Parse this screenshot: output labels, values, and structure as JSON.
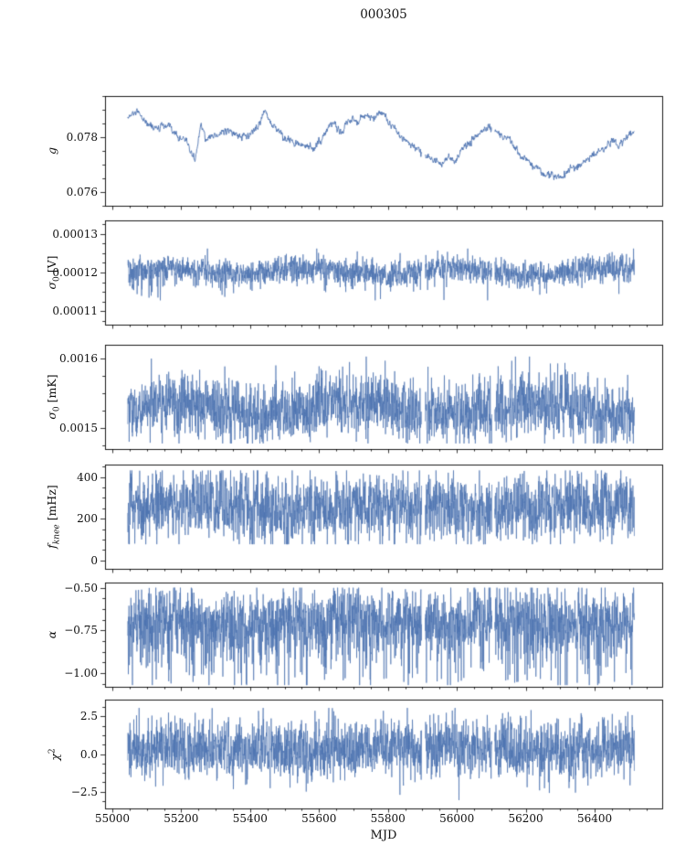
{
  "title": "000305",
  "chart_data": {
    "type": "line",
    "subtype": "six stacked time-series subplots sharing one x-axis",
    "title": "000305",
    "xlabel": "MJD",
    "xlim": [
      54979,
      56596
    ],
    "x_major_ticks": [
      55000,
      55200,
      55400,
      55600,
      55800,
      56000,
      56200,
      56400
    ],
    "x_tick_labels": [
      "55000",
      "55200",
      "55400",
      "55600",
      "55800",
      "56000",
      "56200",
      "56400"
    ],
    "x_minor_step": 50,
    "data_range": [
      55045,
      56515
    ],
    "gaps": [
      [
        55898,
        55908
      ],
      [
        56102,
        56110
      ]
    ],
    "line_color": "#4c72b0",
    "grid": "off",
    "legend": "none",
    "panels": [
      {
        "id": "g",
        "ylabel": {
          "main": "g",
          "sub": "",
          "sup": "",
          "unit": ""
        },
        "ylim": [
          0.0755,
          0.0795
        ],
        "yticks": [
          {
            "v": 0.076,
            "label": "0.076"
          },
          {
            "v": 0.078,
            "label": "0.078"
          }
        ],
        "y_minor_step": 0.0005,
        "series": {
          "kind": "smooth",
          "points": 1600,
          "noise": 6e-05,
          "keypoints": [
            [
              55045,
              0.0787
            ],
            [
              55070,
              0.0789
            ],
            [
              55100,
              0.0785
            ],
            [
              55130,
              0.0783
            ],
            [
              55160,
              0.0784
            ],
            [
              55190,
              0.078
            ],
            [
              55215,
              0.0779
            ],
            [
              55240,
              0.0771
            ],
            [
              55258,
              0.0786
            ],
            [
              55270,
              0.0779
            ],
            [
              55300,
              0.0781
            ],
            [
              55330,
              0.0782
            ],
            [
              55360,
              0.0781
            ],
            [
              55390,
              0.078
            ],
            [
              55420,
              0.0783
            ],
            [
              55445,
              0.079
            ],
            [
              55460,
              0.0785
            ],
            [
              55480,
              0.0783
            ],
            [
              55500,
              0.0779
            ],
            [
              55530,
              0.0778
            ],
            [
              55560,
              0.0777
            ],
            [
              55590,
              0.0776
            ],
            [
              55615,
              0.0781
            ],
            [
              55640,
              0.0785
            ],
            [
              55665,
              0.0782
            ],
            [
              55690,
              0.0787
            ],
            [
              55715,
              0.0786
            ],
            [
              55740,
              0.0788
            ],
            [
              55765,
              0.0787
            ],
            [
              55785,
              0.0789
            ],
            [
              55810,
              0.0784
            ],
            [
              55840,
              0.078
            ],
            [
              55870,
              0.0777
            ],
            [
              55900,
              0.0774
            ],
            [
              55930,
              0.0772
            ],
            [
              55955,
              0.077
            ],
            [
              55975,
              0.0773
            ],
            [
              55995,
              0.0771
            ],
            [
              56015,
              0.0776
            ],
            [
              56040,
              0.0778
            ],
            [
              56065,
              0.0781
            ],
            [
              56090,
              0.0784
            ],
            [
              56110,
              0.0783
            ],
            [
              56135,
              0.078
            ],
            [
              56160,
              0.0778
            ],
            [
              56185,
              0.0773
            ],
            [
              56210,
              0.0771
            ],
            [
              56235,
              0.0768
            ],
            [
              56260,
              0.0766
            ],
            [
              56285,
              0.0766
            ],
            [
              56305,
              0.0765
            ],
            [
              56325,
              0.0768
            ],
            [
              56350,
              0.0769
            ],
            [
              56375,
              0.0772
            ],
            [
              56400,
              0.0774
            ],
            [
              56425,
              0.0776
            ],
            [
              56450,
              0.0779
            ],
            [
              56470,
              0.0777
            ],
            [
              56490,
              0.078
            ],
            [
              56515,
              0.0782
            ]
          ]
        }
      },
      {
        "id": "sigma0_V",
        "ylabel": {
          "main": "σ",
          "sub": "0",
          "sup": "",
          "unit": "[V]"
        },
        "ylim": [
          0.0001065,
          0.0001335
        ],
        "yticks": [
          {
            "v": 0.00011,
            "label": "0.00011"
          },
          {
            "v": 0.00012,
            "label": "0.00012"
          },
          {
            "v": 0.00013,
            "label": "0.00013"
          }
        ],
        "y_minor_step": 2.5e-06,
        "series": {
          "kind": "noise",
          "points": 2600,
          "center": 0.0001203,
          "slow_amp": 8e-07,
          "slow_period": 420,
          "sigma": 1.7e-06,
          "spike_prob": 0.06,
          "spike_amp": 5e-06,
          "spike_dir": -1,
          "clip": [
            0.0001128,
            0.0001262
          ],
          "early": {
            "until": 55160,
            "prob": 0.12,
            "amp": 6e-06,
            "dir": -1
          }
        }
      },
      {
        "id": "sigma0_mK",
        "ylabel": {
          "main": "σ",
          "sub": "0",
          "sup": "",
          "unit": "[mK]"
        },
        "ylim": [
          0.00147,
          0.00162
        ],
        "yticks": [
          {
            "v": 0.0015,
            "label": "0.0015"
          },
          {
            "v": 0.0016,
            "label": "0.0016"
          }
        ],
        "y_minor_step": 2.5e-05,
        "series": {
          "kind": "noise",
          "points": 2600,
          "center": 0.001527,
          "slow_amp": 8e-06,
          "slow_period": 520,
          "sigma": 2.1e-05,
          "spike_prob": 0.08,
          "spike_amp": 5e-05,
          "spike_dir": 0,
          "clip": [
            0.001478,
            0.001603
          ]
        }
      },
      {
        "id": "f_knee",
        "ylabel": {
          "main": "f",
          "sub": "knee",
          "sup": "",
          "unit": "[mHz]"
        },
        "ylim": [
          -40,
          460
        ],
        "yticks": [
          {
            "v": 0,
            "label": "0"
          },
          {
            "v": 200,
            "label": "200"
          },
          {
            "v": 400,
            "label": "400"
          }
        ],
        "y_minor_step": 50,
        "series": {
          "kind": "noise",
          "points": 2600,
          "center": 252,
          "slow_amp": 12,
          "slow_period": 600,
          "sigma": 78,
          "spike_prob": 0,
          "spike_amp": 0,
          "spike_dir": 0,
          "clip": [
            78,
            432
          ]
        }
      },
      {
        "id": "alpha",
        "ylabel": {
          "main": "α",
          "sub": "",
          "sup": "",
          "unit": ""
        },
        "ylim": [
          -1.08,
          -0.47
        ],
        "yticks": [
          {
            "v": -0.5,
            "label": "−0.50"
          },
          {
            "v": -0.75,
            "label": "−0.75"
          },
          {
            "v": -1.0,
            "label": "−1.00"
          }
        ],
        "y_minor_step": 0.0625,
        "series": {
          "kind": "noise",
          "points": 2600,
          "center": -0.68,
          "slow_amp": 0.02,
          "slow_period": 480,
          "sigma": 0.085,
          "spike_prob": 0.3,
          "spike_amp": 0.38,
          "spike_dir": -1,
          "clip": [
            -1.07,
            -0.5
          ]
        }
      },
      {
        "id": "chi2",
        "ylabel": {
          "main": "χ",
          "sub": "",
          "sup": "2",
          "unit": ""
        },
        "ylim": [
          -3.6,
          3.6
        ],
        "yticks": [
          {
            "v": 2.5,
            "label": "2.5"
          },
          {
            "v": 0,
            "label": "0.0"
          },
          {
            "v": -2.5,
            "label": "−2.5"
          }
        ],
        "y_minor_step": 0.625,
        "series": {
          "kind": "noise",
          "points": 2600,
          "center": 0.35,
          "slow_amp": 0.05,
          "slow_period": 700,
          "sigma": 0.95,
          "spike_prob": 0,
          "spike_amp": 0,
          "spike_dir": 0,
          "clip": [
            -3.05,
            3.05
          ]
        }
      }
    ]
  }
}
